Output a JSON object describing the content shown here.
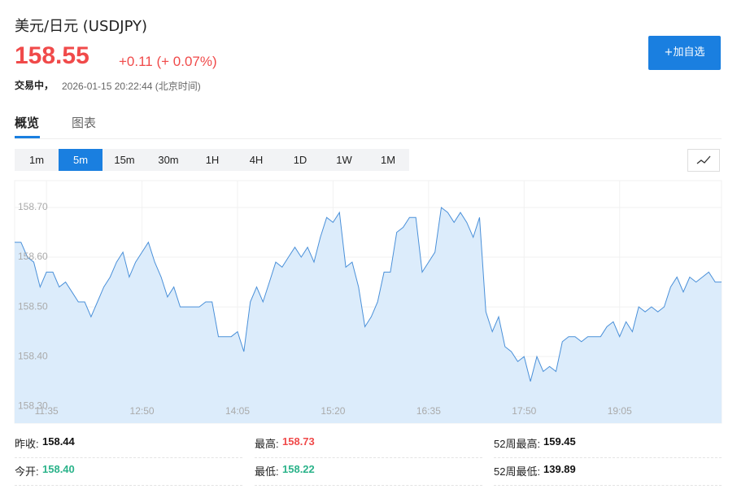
{
  "header": {
    "title": "美元/日元 (USDJPY)",
    "price": "158.55",
    "change": "+0.11 (+ 0.07%)",
    "status": "交易中，",
    "time": "2026-01-15 20:22:44 (北京时间)",
    "button": "+加自选"
  },
  "tabs": [
    "概览",
    "图表"
  ],
  "intervals": [
    "1m",
    "5m",
    "15m",
    "30m",
    "1H",
    "4H",
    "1D",
    "1W",
    "1M"
  ],
  "chart_data": {
    "type": "area",
    "color": "#4a90d9",
    "fill": "#dcecfb",
    "categories": [
      null,
      null,
      null,
      null,
      null,
      "11:35",
      null,
      null,
      null,
      null,
      null,
      null,
      null,
      null,
      null,
      null,
      null,
      null,
      null,
      null,
      "12:50",
      null,
      null,
      null,
      null,
      null,
      null,
      null,
      null,
      null,
      null,
      null,
      null,
      null,
      null,
      "14:05",
      null,
      null,
      null,
      null,
      null,
      null,
      null,
      null,
      null,
      null,
      null,
      null,
      null,
      null,
      "15:20",
      null,
      null,
      null,
      null,
      null,
      null,
      null,
      null,
      null,
      null,
      null,
      null,
      null,
      null,
      "16:35",
      null,
      null,
      null,
      null,
      null,
      null,
      null,
      null,
      null,
      null,
      null,
      null,
      null,
      null,
      "17:50",
      null,
      null,
      null,
      null,
      null,
      null,
      null,
      null,
      null,
      null,
      null,
      null,
      null,
      null,
      "19:05",
      null,
      null,
      null,
      null,
      null,
      null,
      null,
      null,
      null,
      null,
      null,
      null,
      null,
      null,
      null,
      null
    ],
    "values": [
      158.63,
      158.63,
      158.6,
      158.59,
      158.54,
      158.57,
      158.57,
      158.54,
      158.55,
      158.53,
      158.51,
      158.51,
      158.48,
      158.51,
      158.54,
      158.56,
      158.59,
      158.61,
      158.56,
      158.59,
      158.61,
      158.63,
      158.59,
      158.56,
      158.52,
      158.54,
      158.5,
      158.5,
      158.5,
      158.5,
      158.51,
      158.51,
      158.44,
      158.44,
      158.44,
      158.45,
      158.41,
      158.51,
      158.54,
      158.51,
      158.55,
      158.59,
      158.58,
      158.6,
      158.62,
      158.6,
      158.62,
      158.59,
      158.64,
      158.68,
      158.67,
      158.69,
      158.58,
      158.59,
      158.54,
      158.46,
      158.48,
      158.51,
      158.57,
      158.57,
      158.65,
      158.66,
      158.68,
      158.68,
      158.57,
      158.59,
      158.61,
      158.7,
      158.69,
      158.67,
      158.69,
      158.67,
      158.64,
      158.68,
      158.49,
      158.45,
      158.48,
      158.42,
      158.41,
      158.39,
      158.4,
      158.35,
      158.4,
      158.37,
      158.38,
      158.37,
      158.43,
      158.44,
      158.44,
      158.43,
      158.44,
      158.44,
      158.44,
      158.46,
      158.47,
      158.44,
      158.47,
      158.45,
      158.5,
      158.49,
      158.5,
      158.49,
      158.5,
      158.54,
      158.56,
      158.53,
      158.56,
      158.55,
      158.56,
      158.57,
      158.55,
      158.55
    ],
    "ylim": [
      158.266,
      158.754
    ],
    "yticks": [
      {
        "value": 158.7,
        "label": "158.70"
      },
      {
        "value": 158.6,
        "label": "158.60"
      },
      {
        "value": 158.5,
        "label": "158.50"
      },
      {
        "value": 158.4,
        "label": "158.40"
      },
      {
        "value": 158.3,
        "label": "158.30"
      }
    ],
    "grid": true
  },
  "stats": [
    {
      "label": "昨收:",
      "value": "158.44",
      "color": "#111"
    },
    {
      "label": "最高:",
      "value": "158.73",
      "color": "#f04a4a"
    },
    {
      "label": "52周最高:",
      "value": "159.45",
      "color": "#111"
    },
    {
      "label": "今开:",
      "value": "158.40",
      "color": "#2bb38a"
    },
    {
      "label": "最低:",
      "value": "158.22",
      "color": "#2bb38a"
    },
    {
      "label": "52周最低:",
      "value": "139.89",
      "color": "#111"
    }
  ]
}
